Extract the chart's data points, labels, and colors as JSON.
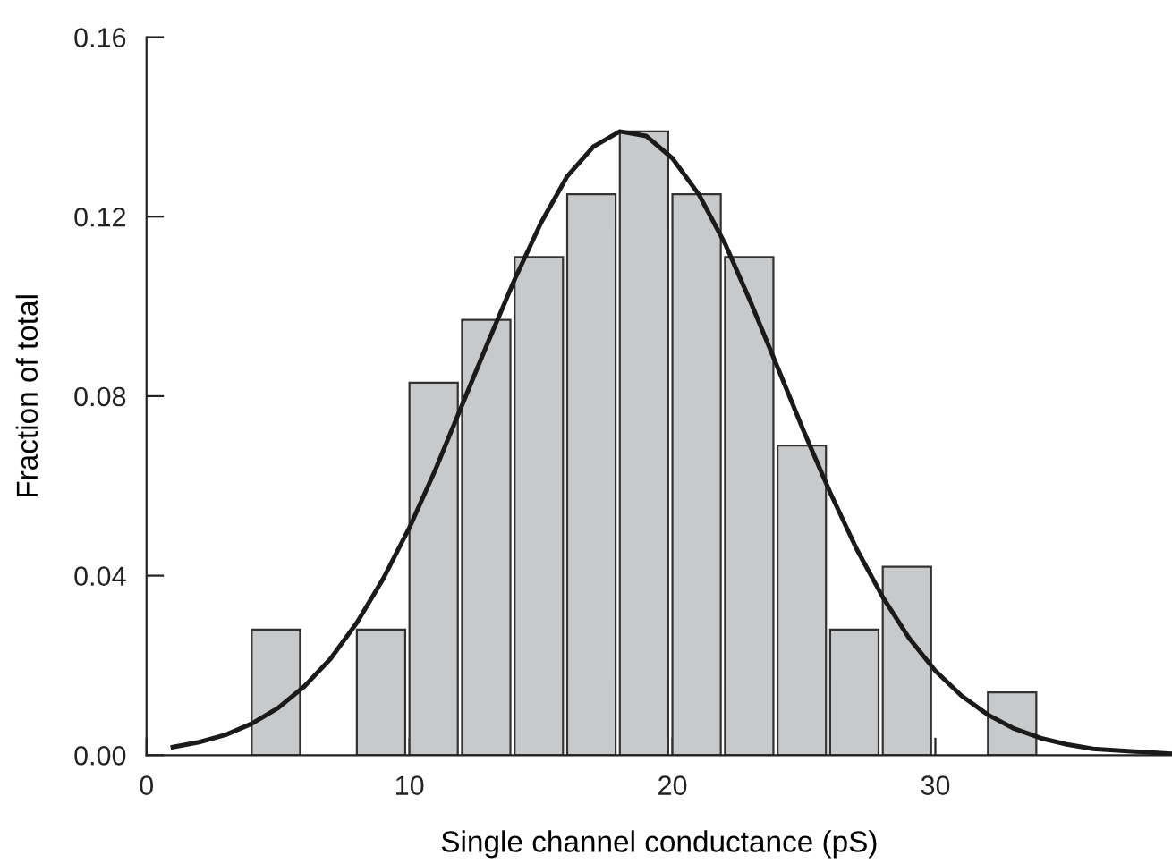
{
  "chart_data": {
    "type": "histogram",
    "xlabel": "Single channel conductance (pS)",
    "ylabel": "Fraction of total",
    "bins": [
      4,
      6,
      8,
      10,
      12,
      14,
      16,
      18,
      20,
      22,
      24,
      26,
      28,
      30,
      32,
      34
    ],
    "values": [
      0.028,
      0,
      0.028,
      0.083,
      0.097,
      0.111,
      0.125,
      0.139,
      0.125,
      0.111,
      0.069,
      0.028,
      0.042,
      0,
      0.014
    ],
    "color": "#c8c9cb",
    "series": [
      {
        "type": "line",
        "color": "#1a1a1a",
        "x": [
          1,
          2,
          3,
          4,
          5,
          6,
          7,
          8,
          9,
          10,
          11,
          12,
          13,
          14,
          15,
          16,
          17,
          18,
          19,
          20,
          21,
          22,
          23,
          24,
          25,
          26,
          27,
          28,
          29,
          30,
          31,
          32,
          33,
          34,
          35,
          36,
          39
        ],
        "values": [
          0.0018,
          0.0029,
          0.0045,
          0.007,
          0.0105,
          0.0153,
          0.0215,
          0.0295,
          0.0393,
          0.0507,
          0.0638,
          0.078,
          0.0922,
          0.106,
          0.1186,
          0.129,
          0.1356,
          0.139,
          0.138,
          0.133,
          0.125,
          0.114,
          0.1006,
          0.0864,
          0.0721,
          0.0585,
          0.046,
          0.0352,
          0.0261,
          0.0188,
          0.0132,
          0.009,
          0.0059,
          0.0038,
          0.0024,
          0.0014,
          0.0003
        ]
      }
    ],
    "xlim": [
      0,
      39
    ],
    "ylim": [
      0,
      0.16
    ],
    "xticks": [
      0,
      10,
      20,
      30
    ],
    "yticks": [
      {
        "value": 0,
        "label": "0.00"
      },
      0.04,
      0.08,
      0.12,
      0.16
    ],
    "grid": false
  }
}
